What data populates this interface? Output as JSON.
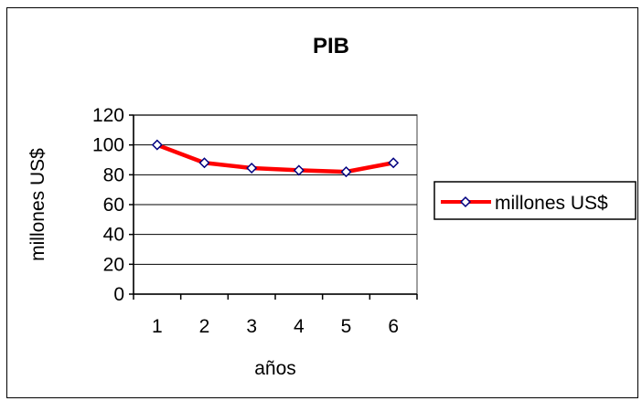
{
  "chart_data": {
    "type": "line",
    "title": "PIB",
    "xlabel": "años",
    "ylabel": "millones US$",
    "categories": [
      "1",
      "2",
      "3",
      "4",
      "5",
      "6"
    ],
    "ylim": [
      0,
      120
    ],
    "yticks": [
      0,
      20,
      40,
      60,
      80,
      100,
      120
    ],
    "grid": true,
    "legend_position": "right",
    "series": [
      {
        "name": "millones US$",
        "values": [
          100,
          88,
          84.5,
          83,
          82,
          88
        ],
        "color": "#ff0000",
        "marker_color": "#000080"
      }
    ]
  }
}
